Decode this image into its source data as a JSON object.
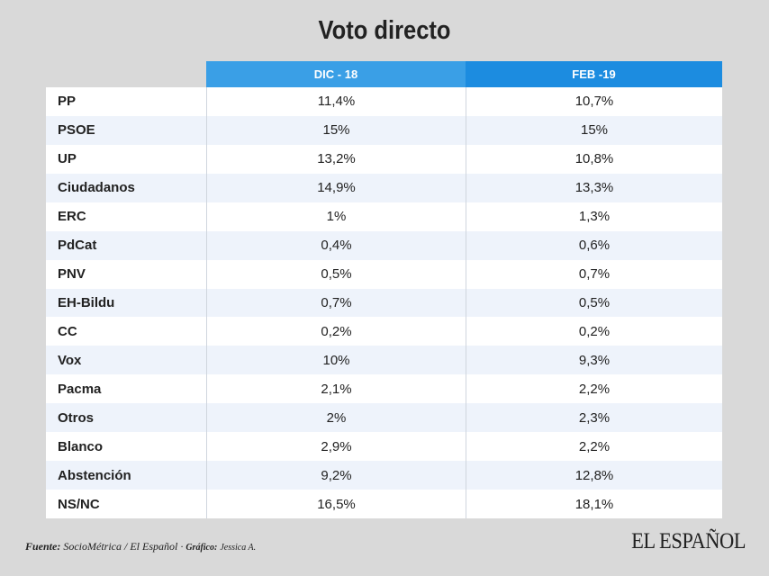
{
  "header": {
    "title": "Voto directo"
  },
  "table": {
    "columns": [
      "DIC - 18",
      "FEB -19"
    ],
    "rows": [
      [
        "PP",
        "11,4%",
        "10,7%"
      ],
      [
        "PSOE",
        "15%",
        "15%"
      ],
      [
        "UP",
        "13,2%",
        "10,8%"
      ],
      [
        "Ciudadanos",
        "14,9%",
        "13,3%"
      ],
      [
        "ERC",
        "1%",
        "1,3%"
      ],
      [
        "PdCat",
        "0,4%",
        "0,6%"
      ],
      [
        "PNV",
        "0,5%",
        "0,7%"
      ],
      [
        "EH-Bildu",
        "0,7%",
        "0,5%"
      ],
      [
        "CC",
        "0,2%",
        "0,2%"
      ],
      [
        "Vox",
        "10%",
        "9,3%"
      ],
      [
        "Pacma",
        "2,1%",
        "2,2%"
      ],
      [
        "Otros",
        "2%",
        "2,3%"
      ],
      [
        "Blanco",
        "2,9%",
        "2,2%"
      ],
      [
        "Abstención",
        "9,2%",
        "12,8%"
      ],
      [
        "NS/NC",
        "16,5%",
        "18,1%"
      ]
    ]
  },
  "footer": {
    "source_label": "Fuente:",
    "source": "SocioMétrica / El Español ·",
    "credit_label": "Gráfico:",
    "credit": "Jessica A.",
    "logo": "EL ESPAÑOL"
  }
}
